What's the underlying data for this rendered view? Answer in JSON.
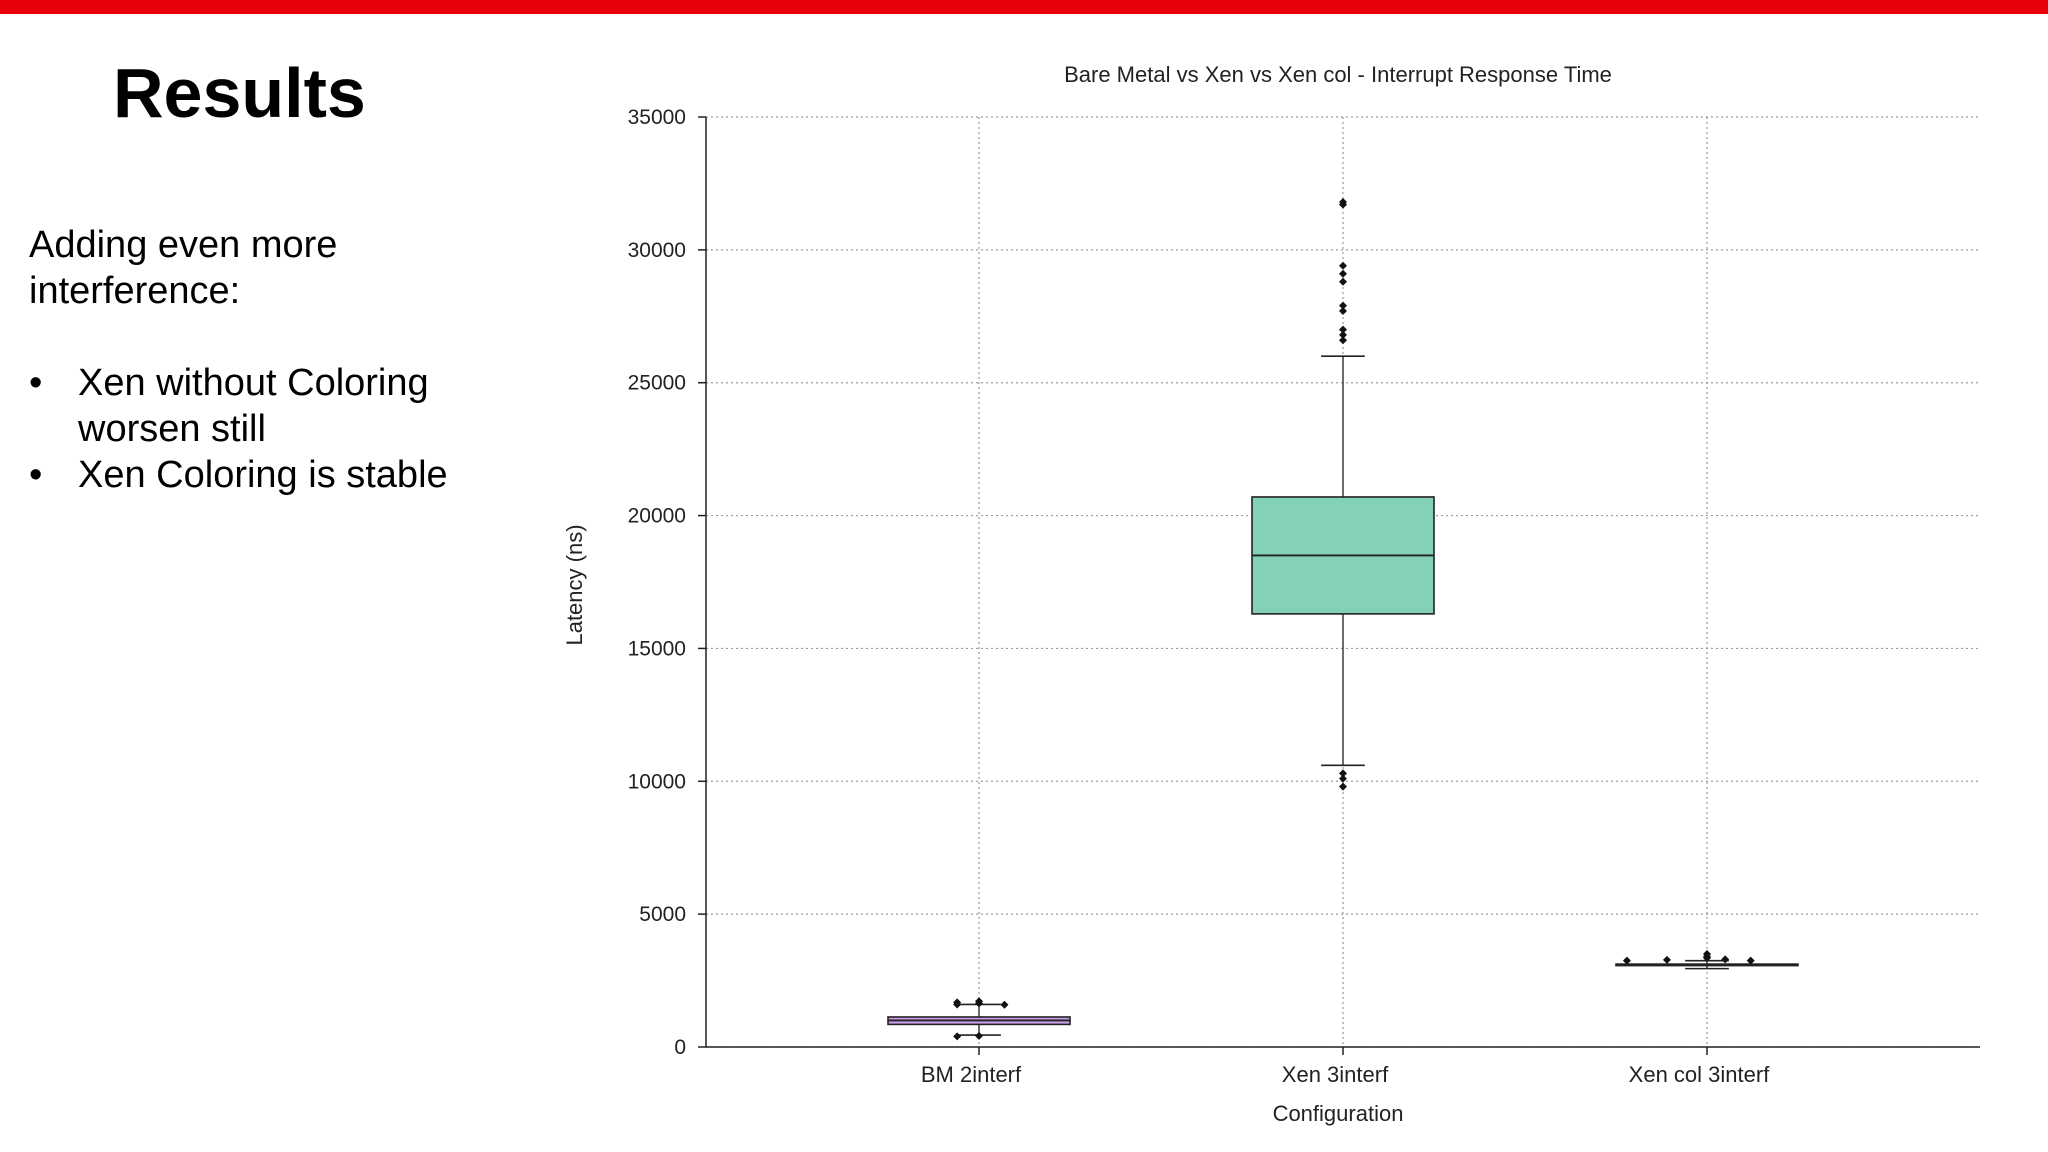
{
  "slide": {
    "title": "Results",
    "intro": "Adding even more interference:",
    "bullets": [
      {
        "marker": "•",
        "text": "Xen without Coloring worsen still"
      },
      {
        "marker": "•",
        "text": "Xen Coloring is stable"
      }
    ],
    "accent_color": "#e8000b"
  },
  "chart_data": {
    "type": "box",
    "title": "Bare Metal vs Xen vs Xen col - Interrupt Response Time",
    "xlabel": "Configuration",
    "ylabel": "Latency (ns)",
    "ylim": [
      0,
      35000
    ],
    "yticks": [
      0,
      5000,
      10000,
      15000,
      20000,
      25000,
      30000,
      35000
    ],
    "ytick_labels": [
      "0",
      "5000",
      "10000",
      "15000",
      "20000",
      "25000",
      "30000",
      "35000"
    ],
    "grid": true,
    "categories": [
      "BM 2interf",
      "Xen 3interf",
      "Xen col 3interf"
    ],
    "boxes": [
      {
        "name": "BM 2interf",
        "color": "#c79be6",
        "q1": 850,
        "median": 1000,
        "q3": 1130,
        "whisker_low": 450,
        "whisker_high": 1600,
        "outliers": [
          {
            "x_offset": -0.06,
            "y": 1680
          },
          {
            "x_offset": -0.06,
            "y": 1600
          },
          {
            "x_offset": 0.0,
            "y": 1720
          },
          {
            "x_offset": 0.0,
            "y": 1640
          },
          {
            "x_offset": 0.07,
            "y": 1590
          },
          {
            "x_offset": -0.06,
            "y": 400
          },
          {
            "x_offset": 0.0,
            "y": 420
          }
        ]
      },
      {
        "name": "Xen 3interf",
        "color": "#84d1b9",
        "q1": 16300,
        "median": 18500,
        "q3": 20700,
        "whisker_low": 10600,
        "whisker_high": 26000,
        "outliers": [
          {
            "x_offset": 0,
            "y": 31800
          },
          {
            "x_offset": 0,
            "y": 31700
          },
          {
            "x_offset": 0,
            "y": 29400
          },
          {
            "x_offset": 0,
            "y": 29100
          },
          {
            "x_offset": 0,
            "y": 28800
          },
          {
            "x_offset": 0,
            "y": 27900
          },
          {
            "x_offset": 0,
            "y": 27700
          },
          {
            "x_offset": 0,
            "y": 27000
          },
          {
            "x_offset": 0,
            "y": 26800
          },
          {
            "x_offset": 0,
            "y": 26600
          },
          {
            "x_offset": 0,
            "y": 10300
          },
          {
            "x_offset": 0,
            "y": 10100
          },
          {
            "x_offset": 0,
            "y": 9800
          }
        ]
      },
      {
        "name": "Xen col 3interf",
        "color": "#c79be6",
        "q1": 3080,
        "median": 3100,
        "q3": 3120,
        "whisker_low": 2950,
        "whisker_high": 3250,
        "outliers": [
          {
            "x_offset": -0.22,
            "y": 3250
          },
          {
            "x_offset": -0.11,
            "y": 3280
          },
          {
            "x_offset": 0.0,
            "y": 3500
          },
          {
            "x_offset": 0.0,
            "y": 3400
          },
          {
            "x_offset": 0.0,
            "y": 3350
          },
          {
            "x_offset": 0.05,
            "y": 3300
          },
          {
            "x_offset": 0.12,
            "y": 3250
          }
        ]
      }
    ]
  }
}
